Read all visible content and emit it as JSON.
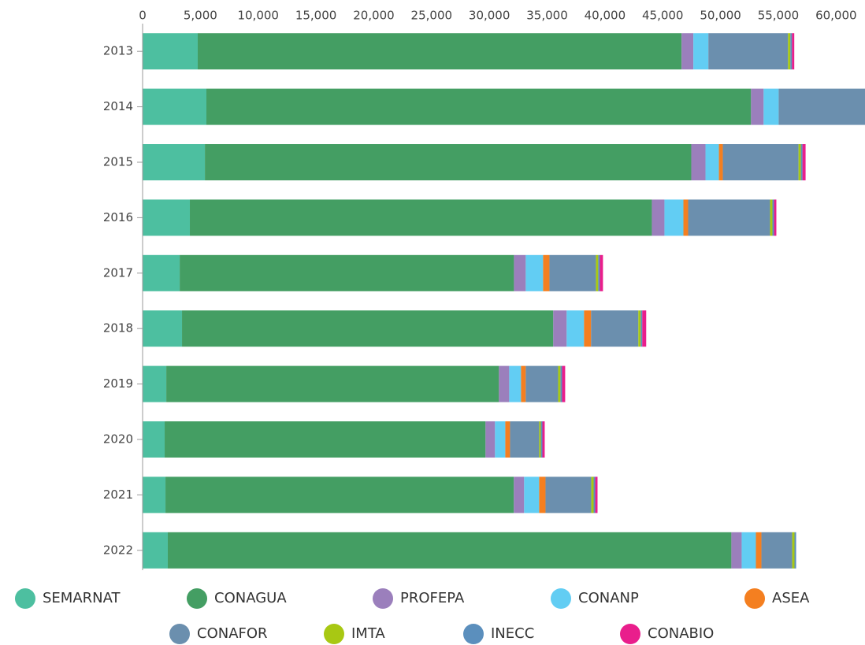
{
  "chart_data": {
    "type": "stacked-bar",
    "orientation": "horizontal",
    "legend": "bottom",
    "categories": [
      "2013",
      "2014",
      "2015",
      "2016",
      "2017",
      "2018",
      "2019",
      "2020",
      "2021",
      "2022"
    ],
    "xlim": [
      0,
      62500
    ],
    "xticks": [
      0,
      {
        "value": 5000,
        "label": "5,000"
      },
      {
        "value": 10000,
        "label": "10,000"
      },
      {
        "value": 15000,
        "label": "15,000"
      },
      {
        "value": 20000,
        "label": "20,000"
      },
      {
        "value": 25000,
        "label": "25,000"
      },
      {
        "value": 30000,
        "label": "30,000"
      },
      {
        "value": 35000,
        "label": "35,000"
      },
      {
        "value": 40000,
        "label": "40,000"
      },
      {
        "value": 45000,
        "label": "45,000"
      },
      {
        "value": 50000,
        "label": "50,000"
      },
      {
        "value": 55000,
        "label": "55,000"
      },
      {
        "value": 60000,
        "label": "60,000"
      }
    ],
    "series": [
      {
        "name": "SEMARNAT",
        "color": "#4dbfa0",
        "values": [
          4770,
          5520,
          5390,
          4090,
          3210,
          3410,
          2050,
          1910,
          1980,
          2180
        ]
      },
      {
        "name": "CONAGUA",
        "color": "#449e63",
        "values": [
          41860,
          47120,
          42080,
          39970,
          28920,
          32120,
          28780,
          27760,
          30140,
          48760
        ]
      },
      {
        "name": "PROFEPA",
        "color": "#9b7fbc",
        "values": [
          1020,
          1090,
          1230,
          1090,
          1020,
          1160,
          890,
          820,
          890,
          890
        ]
      },
      {
        "name": "CONANP",
        "color": "#62cdf3",
        "values": [
          1300,
          1300,
          1160,
          1640,
          1500,
          1500,
          1020,
          890,
          1300,
          1230
        ]
      },
      {
        "name": "ASEA",
        "color": "#f47f20",
        "values": [
          0,
          0,
          340,
          410,
          550,
          610,
          410,
          410,
          550,
          480
        ]
      },
      {
        "name": "CONAFOR",
        "color": "#6b8fae",
        "values": [
          6890,
          8000,
          6550,
          7090,
          4020,
          4090,
          2800,
          2520,
          3960,
          2660
        ]
      },
      {
        "name": "IMTA",
        "color": "#a8c813",
        "values": [
          200,
          200,
          200,
          200,
          200,
          200,
          200,
          140,
          200,
          200
        ]
      },
      {
        "name": "INECC",
        "color": "#5b8fbd",
        "values": [
          140,
          150,
          140,
          140,
          140,
          140,
          140,
          140,
          140,
          140
        ]
      },
      {
        "name": "CONABIO",
        "color": "#e91e8c",
        "values": [
          200,
          200,
          270,
          200,
          270,
          340,
          270,
          200,
          200,
          0
        ]
      }
    ]
  }
}
